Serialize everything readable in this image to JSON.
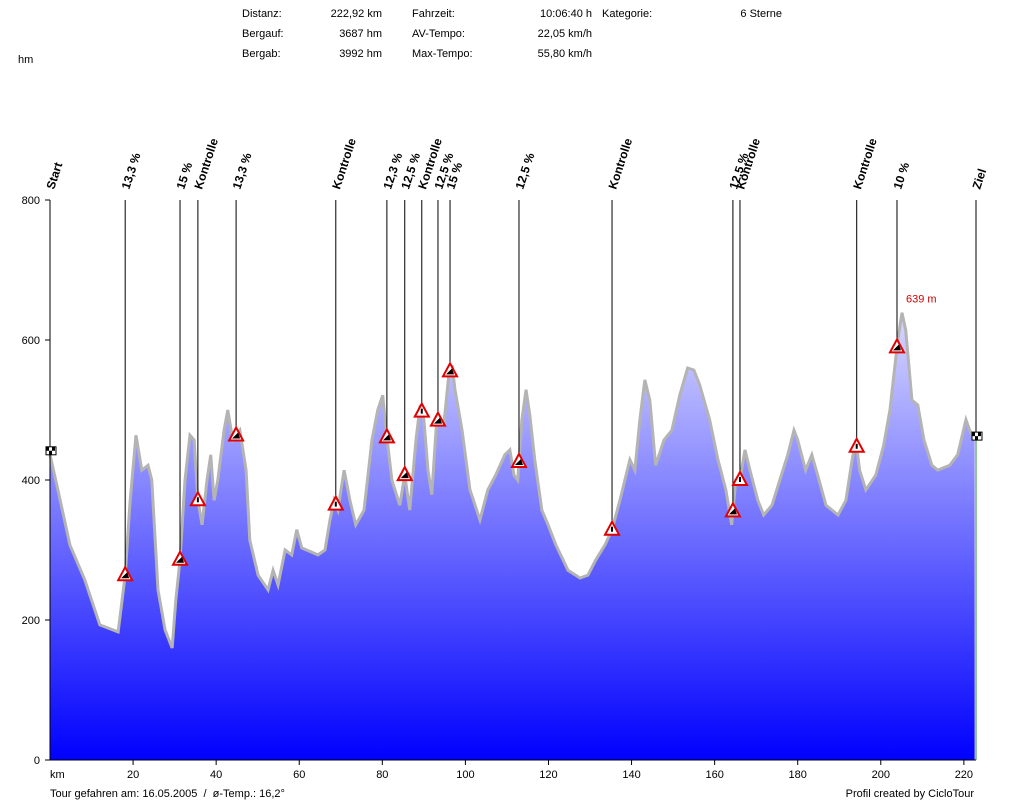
{
  "chart_data": {
    "type": "area",
    "y_unit": "hm",
    "x_unit": "km",
    "stats": [
      [
        {
          "label": "Distanz:",
          "value": "222,92 km"
        },
        {
          "label": "Bergauf:",
          "value": "3687 hm"
        },
        {
          "label": "Bergab:",
          "value": "3992 hm"
        }
      ],
      [
        {
          "label": "Fahrzeit:",
          "value": "10:06:40 h"
        },
        {
          "label": "AV-Tempo:",
          "value": "22,05 km/h"
        },
        {
          "label": "Max-Tempo:",
          "value": "55,80 km/h"
        }
      ],
      [
        {
          "label": "Kategorie:",
          "value": "6 Sterne"
        }
      ]
    ],
    "footer_left": "Tour gefahren am: 16.05.2005  /  ø-Temp.: 16,2°",
    "footer_right": "Profil created by CicloTour",
    "peak_label": "639 m",
    "x": [
      0,
      1.9,
      4.8,
      8.4,
      12.0,
      16.4,
      18.1,
      19.3,
      20.7,
      22.1,
      23.6,
      24.5,
      26.0,
      27.7,
      29.4,
      30.3,
      31.3,
      32.5,
      33.7,
      34.7,
      35.6,
      36.6,
      37.8,
      38.7,
      39.5,
      40.4,
      41.9,
      42.8,
      44.0,
      45.7,
      47.2,
      48.1,
      50.1,
      52.5,
      53.7,
      54.9,
      56.6,
      58.2,
      59.4,
      60.6,
      64.5,
      66.2,
      67.4,
      68.4,
      69.3,
      70.8,
      72.2,
      73.6,
      75.6,
      77.5,
      78.9,
      80.1,
      80.9,
      82.3,
      84.2,
      85.4,
      86.6,
      88.1,
      89.1,
      90.0,
      91.0,
      91.9,
      93.1,
      94.8,
      96.0,
      96.8,
      97.5,
      99.2,
      101.1,
      103.5,
      105.4,
      107.3,
      109.5,
      110.7,
      111.7,
      112.6,
      113.6,
      114.6,
      115.5,
      116.7,
      118.4,
      119.9,
      121.8,
      124.7,
      127.6,
      129.5,
      131.4,
      133.6,
      135.3,
      137.2,
      138.4,
      139.6,
      140.8,
      142.0,
      143.2,
      144.4,
      145.8,
      147.8,
      149.7,
      151.6,
      153.5,
      155.0,
      156.4,
      158.8,
      160.8,
      162.7,
      164.1,
      165.1,
      166.1,
      167.3,
      168.5,
      170.4,
      171.8,
      173.8,
      175.7,
      177.6,
      179.1,
      180.0,
      181.9,
      183.4,
      184.8,
      186.8,
      189.7,
      191.6,
      193.1,
      194.0,
      194.9,
      196.4,
      198.8,
      200.7,
      202.2,
      204.1,
      205.1,
      206.0,
      207.5,
      208.9,
      210.4,
      212.3,
      213.7,
      216.6,
      218.5,
      220.5,
      221.4,
      222.6
    ],
    "values": [
      436,
      386,
      307,
      257,
      193,
      183,
      264,
      371,
      464,
      414,
      421,
      400,
      243,
      186,
      160,
      229,
      286,
      400,
      464,
      457,
      371,
      336,
      400,
      436,
      371,
      400,
      471,
      500,
      457,
      471,
      414,
      314,
      264,
      243,
      271,
      250,
      300,
      293,
      329,
      303,
      293,
      300,
      343,
      371,
      357,
      414,
      371,
      336,
      357,
      457,
      500,
      521,
      471,
      400,
      364,
      407,
      357,
      457,
      507,
      486,
      414,
      379,
      486,
      479,
      550,
      564,
      529,
      471,
      386,
      343,
      386,
      407,
      436,
      443,
      407,
      400,
      486,
      529,
      493,
      429,
      357,
      336,
      307,
      271,
      260,
      264,
      286,
      307,
      329,
      371,
      400,
      429,
      414,
      486,
      543,
      514,
      421,
      457,
      471,
      521,
      560,
      557,
      536,
      486,
      429,
      386,
      336,
      400,
      400,
      443,
      414,
      371,
      350,
      364,
      400,
      436,
      471,
      457,
      414,
      436,
      407,
      364,
      350,
      371,
      429,
      457,
      414,
      386,
      407,
      450,
      500,
      600,
      639,
      614,
      514,
      507,
      457,
      421,
      414,
      421,
      436,
      486,
      471,
      457
    ],
    "color": "#0000ff",
    "line_color": "#b4b4b4",
    "markers": [
      {
        "label": "Start",
        "km": 0,
        "kind": "flag"
      },
      {
        "label": "13,3 %",
        "km": 18.1,
        "kind": "climb"
      },
      {
        "label": "15 %",
        "km": 31.3,
        "kind": "climb"
      },
      {
        "label": "Kontrolle",
        "km": 35.6,
        "kind": "check"
      },
      {
        "label": "13,3 %",
        "km": 44.8,
        "kind": "climb"
      },
      {
        "label": "Kontrolle",
        "km": 68.8,
        "kind": "check"
      },
      {
        "label": "12,3 %",
        "km": 81.1,
        "kind": "climb"
      },
      {
        "label": "12,5 %",
        "km": 85.4,
        "kind": "climb"
      },
      {
        "label": "Kontrolle",
        "km": 89.5,
        "kind": "check"
      },
      {
        "label": "12,5 %",
        "km": 93.4,
        "kind": "climb"
      },
      {
        "label": "15 %",
        "km": 96.3,
        "kind": "climb"
      },
      {
        "label": "12,5 %",
        "km": 112.9,
        "kind": "climb"
      },
      {
        "label": "Kontrolle",
        "km": 135.3,
        "kind": "check"
      },
      {
        "label": "12,5 %",
        "km": 164.4,
        "kind": "climb"
      },
      {
        "label": "Kontrolle",
        "km": 166.1,
        "kind": "check"
      },
      {
        "label": "Kontrolle",
        "km": 194.2,
        "kind": "check"
      },
      {
        "label": "10 %",
        "km": 203.9,
        "kind": "climb"
      },
      {
        "label": "Ziel",
        "km": 222.92,
        "kind": "flag"
      }
    ],
    "xlim": [
      0,
      222.92
    ],
    "xticks": [
      20,
      40,
      60,
      80,
      100,
      120,
      140,
      160,
      180,
      200,
      220
    ],
    "ylim": [
      0,
      800
    ],
    "yticks": [
      0,
      200,
      400,
      600,
      800
    ]
  }
}
